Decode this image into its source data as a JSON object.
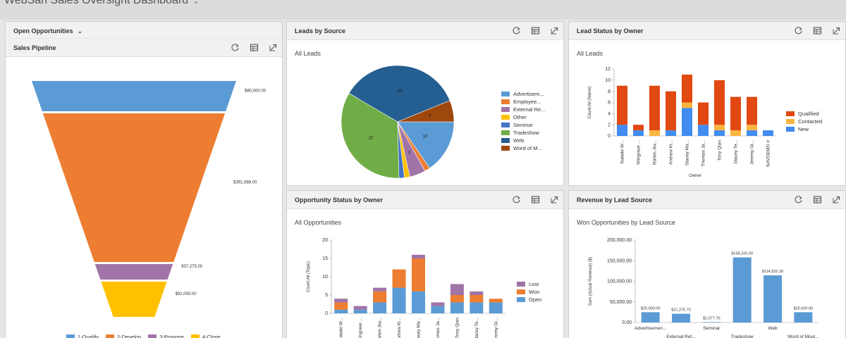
{
  "dashboard": {
    "title": "WebSan Sales Oversight Dashboard"
  },
  "panels": {
    "pipeline": {
      "view_selector": "Open Opportunities",
      "title": "Sales Pipeline"
    },
    "leads_source": {
      "title": "Leads by Source",
      "subtitle": "All Leads"
    },
    "lead_status": {
      "title": "Lead Status by Owner",
      "subtitle": "All Leads"
    },
    "opp_status": {
      "title": "Opportunity Status by Owner",
      "subtitle": "All Opportunities"
    },
    "revenue": {
      "title": "Revenue by Lead Source",
      "subtitle": "Won Opportunities by Lead Source"
    }
  },
  "icons": [
    "refresh-icon",
    "open-grid-icon",
    "expand-icon"
  ],
  "chart_data": [
    {
      "id": "sales-pipeline",
      "type": "funnel",
      "title": "Sales Pipeline",
      "series": [
        {
          "name": "1-Qualify",
          "value": 80000.0,
          "label": "$80,000.00",
          "color": "#5b9bd5"
        },
        {
          "name": "2-Develop",
          "value": 391988.0,
          "label": "$391,988.00",
          "color": "#ed7d31"
        },
        {
          "name": "3-Propose",
          "value": 37275.0,
          "label": "$37,275.00",
          "color": "#a074a6"
        },
        {
          "name": "4-Close",
          "value": 92000.0,
          "label": "$92,000.00",
          "color": "#ffc000"
        }
      ]
    },
    {
      "id": "leads-by-source",
      "type": "pie",
      "title": "Leads by Source",
      "subtitle": "All Leads",
      "legend": "right",
      "slices": [
        {
          "name": "Advertisem...",
          "value": 10,
          "color": "#5b9bd5"
        },
        {
          "name": "Employee...",
          "value": 1,
          "color": "#ed7d31"
        },
        {
          "name": "External Re...",
          "value": 3,
          "color": "#a074a6"
        },
        {
          "name": "Other",
          "value": 1,
          "color": "#ffc000"
        },
        {
          "name": "Seminar",
          "value": 1,
          "color": "#4472c4"
        },
        {
          "name": "Tradeshow",
          "value": 22,
          "color": "#70ad47"
        },
        {
          "name": "Web",
          "value": 23,
          "color": "#255e91"
        },
        {
          "name": "Word of M...",
          "value": 4,
          "color": "#9e480e"
        }
      ],
      "data_labels": [
        "10",
        "3",
        "22",
        "23",
        "4"
      ]
    },
    {
      "id": "lead-status-by-owner",
      "type": "bar",
      "stacked": true,
      "title": "Lead Status by Owner",
      "subtitle": "All Leads",
      "xlabel": "Owner",
      "ylabel": "Count:All (Name)",
      "ylim": [
        0,
        12
      ],
      "yticks": [
        0,
        2,
        4,
        6,
        8,
        10,
        12
      ],
      "legend": "right",
      "categories": [
        "Natalie W...",
        "Wingrave ...",
        "Rahim Jiw...",
        "Andrew Ki...",
        "Stacey Ma...",
        "Thomas Ja...",
        "Tony Qian",
        "Stacey Te...",
        "Jeremy Gi...",
        "NAVDEMO #"
      ],
      "series": [
        {
          "name": "Qualified",
          "color": "#e14812",
          "values": [
            7,
            1,
            8,
            7,
            5,
            4,
            8,
            6,
            5,
            0
          ]
        },
        {
          "name": "Contacted",
          "color": "#fcb441",
          "values": [
            0,
            0,
            1,
            0,
            1,
            0,
            1,
            1,
            1,
            0
          ]
        },
        {
          "name": "New",
          "color": "#418cf0",
          "values": [
            2,
            1,
            0,
            1,
            5,
            2,
            1,
            0,
            1,
            1
          ]
        }
      ]
    },
    {
      "id": "opportunity-status-by-owner",
      "type": "bar",
      "stacked": true,
      "title": "Opportunity Status by Owner",
      "subtitle": "All Opportunities",
      "ylabel": "Count:All (Topic)",
      "ylim": [
        0,
        20
      ],
      "yticks": [
        0,
        5,
        10,
        15,
        20
      ],
      "legend": "right",
      "categories": [
        "Natalie W...",
        "Wingrave ...",
        "Rahim Jiw...",
        "Andrew Ki...",
        "Stacey Ma...",
        "Thomas Ja...",
        "Tony Qian",
        "Stacey Te...",
        "Jeremy Gi..."
      ],
      "series": [
        {
          "name": "Open",
          "color": "#5b9bd5",
          "values": [
            1,
            1,
            3,
            7,
            6,
            2,
            3,
            3,
            3
          ]
        },
        {
          "name": "Won",
          "color": "#ed7d31",
          "values": [
            2,
            0,
            3,
            5,
            9,
            0,
            2,
            2,
            1
          ]
        },
        {
          "name": "Lost",
          "color": "#a074a6",
          "values": [
            1,
            1,
            1,
            0,
            1,
            1,
            3,
            1,
            0
          ]
        }
      ]
    },
    {
      "id": "revenue-by-lead-source",
      "type": "bar",
      "title": "Revenue by Lead Source",
      "subtitle": "Won Opportunities by Lead Source",
      "ylabel": "Sum (Actual Revenue) ($)",
      "ylim": [
        0,
        200000
      ],
      "yticks": [
        "0.00",
        "50,000.00",
        "100,000.00",
        "150,000.00",
        "200,000.00"
      ],
      "categories": [
        "Advertisemen...",
        "External Ref...",
        "Seminar",
        "Tradeshow",
        "Web",
        "Word of Mout..."
      ],
      "values": [
        25000.0,
        21275.7,
        1077.7,
        158100.0,
        114502.3,
        25000.0
      ],
      "data_labels": [
        "$25,000.00",
        "$21,275.70",
        "$1,077.70",
        "$158,100.00",
        "$114,502.30",
        "$25,000.00"
      ],
      "color": "#5b9bd5"
    }
  ]
}
